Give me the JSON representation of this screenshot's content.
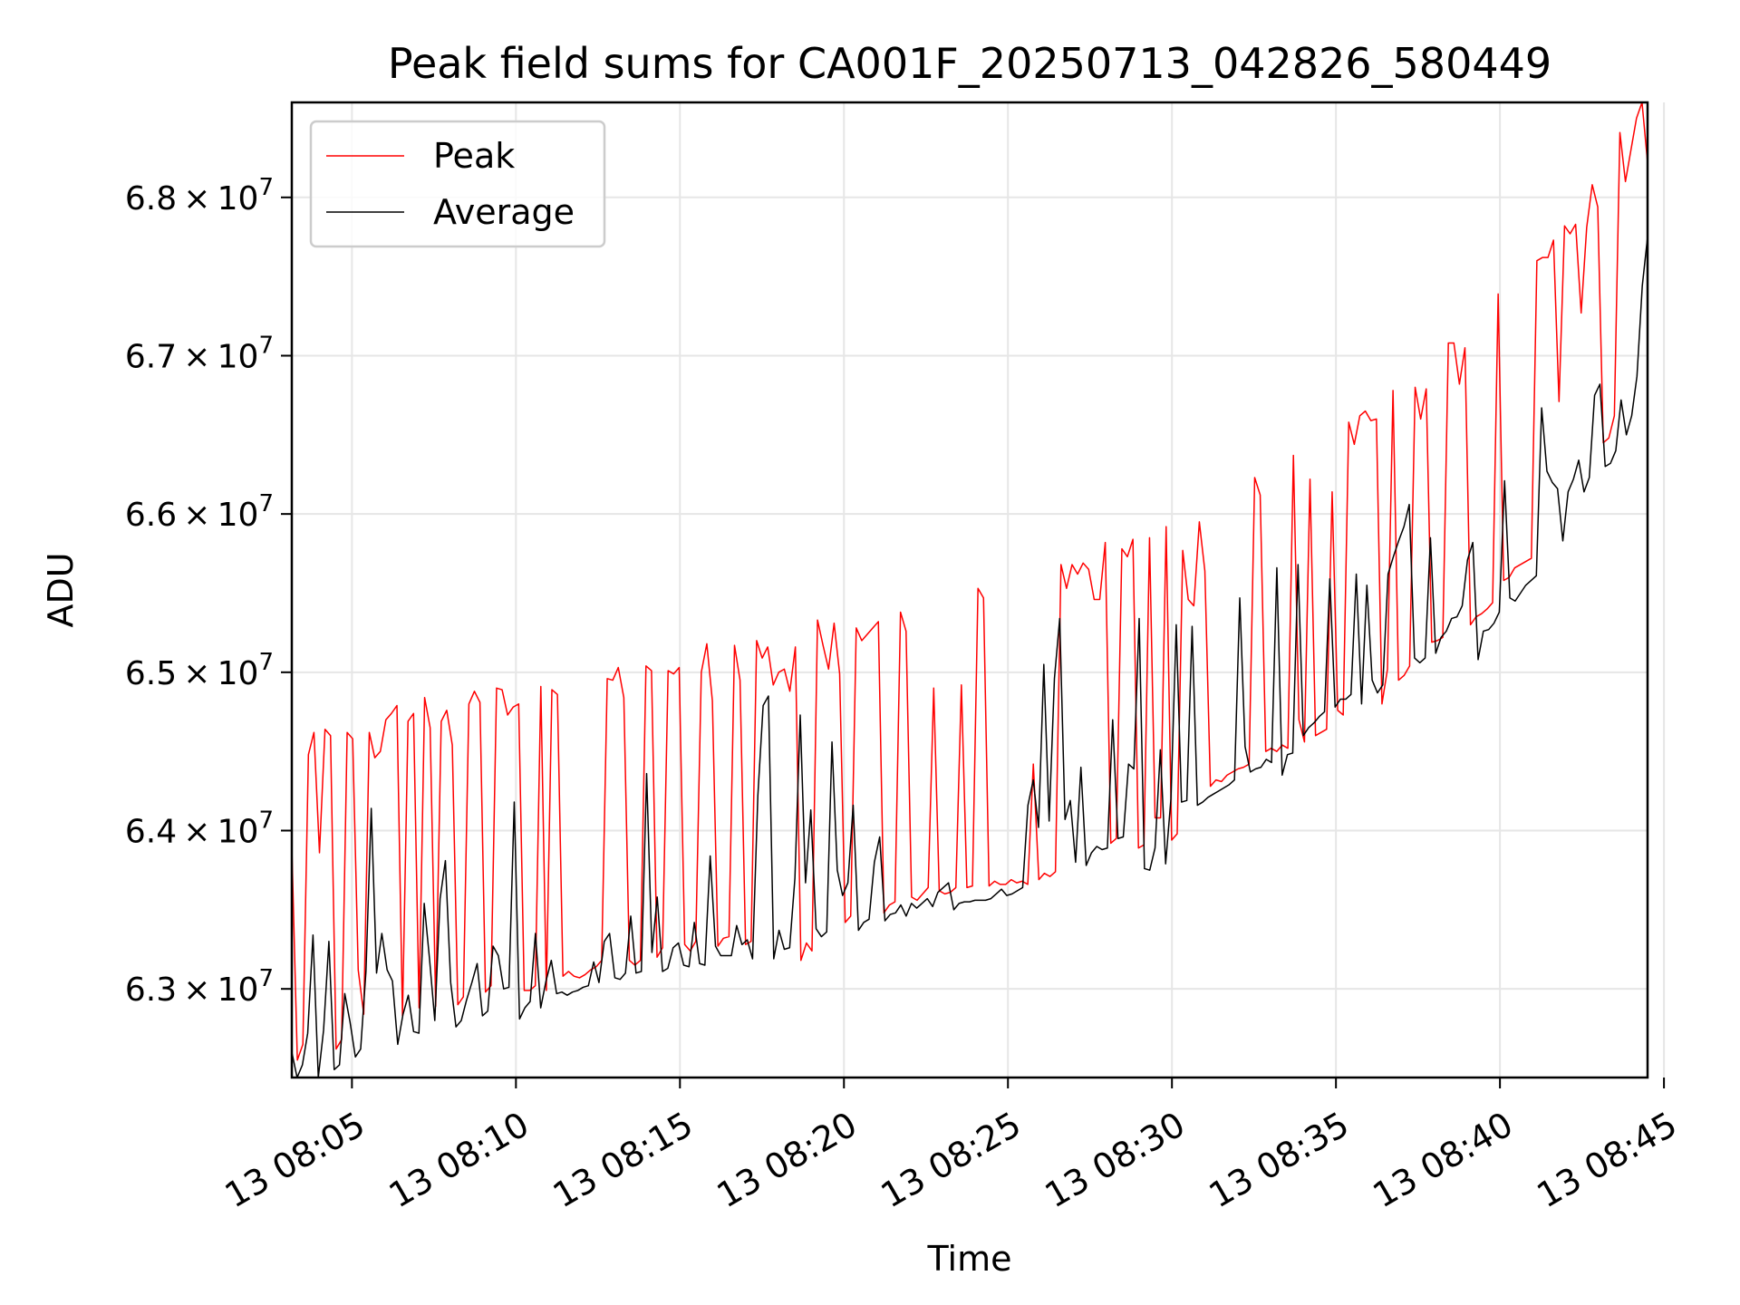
{
  "chart_data": {
    "type": "line",
    "title": "Peak field sums for CA001F_20250713_042826_580449",
    "xlabel": "Time",
    "ylabel": "ADU",
    "x_format": "datetime",
    "x_start": "2025-07-13T08:03:10",
    "x_end": "2025-07-13T08:44:30",
    "x_step_seconds": 6,
    "xlim": [
      "2025-07-13T08:03:10",
      "2025-07-13T08:44:30"
    ],
    "ylim": [
      62440000,
      68600000
    ],
    "x_ticks": [
      "2025-07-13T08:05:00",
      "2025-07-13T08:10:00",
      "2025-07-13T08:15:00",
      "2025-07-13T08:20:00",
      "2025-07-13T08:25:00",
      "2025-07-13T08:30:00",
      "2025-07-13T08:35:00",
      "2025-07-13T08:40:00",
      "2025-07-13T08:45:00"
    ],
    "x_tick_labels": [
      "13 08:05",
      "13 08:10",
      "13 08:15",
      "13 08:20",
      "13 08:25",
      "13 08:30",
      "13 08:35",
      "13 08:40",
      "13 08:45"
    ],
    "y_ticks": [
      63000000,
      64000000,
      65000000,
      66000000,
      67000000,
      68000000
    ],
    "y_tick_labels": [
      {
        "mantissa": "6.3",
        "times": "×",
        "base": "10",
        "exp": "7"
      },
      {
        "mantissa": "6.4",
        "times": "×",
        "base": "10",
        "exp": "7"
      },
      {
        "mantissa": "6.5",
        "times": "×",
        "base": "10",
        "exp": "7"
      },
      {
        "mantissa": "6.6",
        "times": "×",
        "base": "10",
        "exp": "7"
      },
      {
        "mantissa": "6.7",
        "times": "×",
        "base": "10",
        "exp": "7"
      },
      {
        "mantissa": "6.8",
        "times": "×",
        "base": "10",
        "exp": "7"
      }
    ],
    "grid": true,
    "legend_position": "top-left",
    "series": [
      {
        "name": "Peak",
        "color": "#ff0000",
        "values": [
          63900000,
          62550000,
          62650000,
          64480000,
          64620000,
          63860000,
          64640000,
          64600000,
          62620000,
          62680000,
          64620000,
          64580000,
          63120000,
          62840000,
          64620000,
          64460000,
          64500000,
          64700000,
          64740000,
          64790000,
          62830000,
          64690000,
          64740000,
          62880000,
          64840000,
          64650000,
          62890000,
          64690000,
          64760000,
          64540000,
          62900000,
          62950000,
          64800000,
          64880000,
          64810000,
          62980000,
          63020000,
          64900000,
          64890000,
          64730000,
          64780000,
          64800000,
          62990000,
          62990000,
          63020000,
          64910000,
          62990000,
          64890000,
          64860000,
          63080000,
          63110000,
          63080000,
          63070000,
          63090000,
          63120000,
          63140000,
          63180000,
          64960000,
          64950000,
          65030000,
          64840000,
          63180000,
          63150000,
          63180000,
          65040000,
          65010000,
          63200000,
          63260000,
          65010000,
          64990000,
          65030000,
          63280000,
          63240000,
          63300000,
          65000000,
          65180000,
          64820000,
          63270000,
          63320000,
          63330000,
          65170000,
          64950000,
          63280000,
          63300000,
          65200000,
          65090000,
          65160000,
          64920000,
          65000000,
          65020000,
          64880000,
          65160000,
          63180000,
          63290000,
          63240000,
          65330000,
          65170000,
          65020000,
          65310000,
          64990000,
          63420000,
          63460000,
          65280000,
          65200000,
          65240000,
          65280000,
          65320000,
          63480000,
          63530000,
          63550000,
          65380000,
          65260000,
          63580000,
          63560000,
          63600000,
          63640000,
          64900000,
          63620000,
          63600000,
          63610000,
          63640000,
          64920000,
          63640000,
          63650000,
          65530000,
          65470000,
          63650000,
          63680000,
          63660000,
          63660000,
          63690000,
          63670000,
          63680000,
          63660000,
          64420000,
          63690000,
          63730000,
          63710000,
          63740000,
          65680000,
          65530000,
          65680000,
          65620000,
          65690000,
          65650000,
          65460000,
          65460000,
          65820000,
          63920000,
          63950000,
          65780000,
          65730000,
          65840000,
          63890000,
          63910000,
          65850000,
          64080000,
          64080000,
          65920000,
          63940000,
          63980000,
          65770000,
          65460000,
          65420000,
          65950000,
          65640000,
          64280000,
          64320000,
          64310000,
          64350000,
          64370000,
          64390000,
          64400000,
          64420000,
          66230000,
          66120000,
          64500000,
          64520000,
          64500000,
          64540000,
          64520000,
          66370000,
          64700000,
          64560000,
          66220000,
          64600000,
          64620000,
          64640000,
          66140000,
          64760000,
          64730000,
          66580000,
          66440000,
          66620000,
          66650000,
          66590000,
          66600000,
          64800000,
          65020000,
          66780000,
          64950000,
          64980000,
          65040000,
          66800000,
          66600000,
          66790000,
          65190000,
          65200000,
          65220000,
          67080000,
          67080000,
          66820000,
          67050000,
          65300000,
          65350000,
          65370000,
          65400000,
          65440000,
          67390000,
          65580000,
          65600000,
          65660000,
          65680000,
          65700000,
          65720000,
          67600000,
          67620000,
          67620000,
          67730000,
          66710000,
          67820000,
          67770000,
          67830000,
          67270000,
          67810000,
          68080000,
          67940000,
          66450000,
          66480000,
          66620000,
          68410000,
          68100000,
          68300000,
          68500000,
          68600000,
          68220000
        ]
      },
      {
        "name": "Average",
        "color": "#000000",
        "values": [
          62600000,
          62440000,
          62520000,
          62720000,
          63340000,
          62440000,
          62740000,
          63300000,
          62490000,
          62520000,
          62970000,
          62790000,
          62570000,
          62620000,
          63110000,
          64140000,
          63100000,
          63350000,
          63120000,
          63050000,
          62650000,
          62840000,
          62960000,
          62730000,
          62720000,
          63540000,
          63190000,
          62800000,
          63570000,
          63810000,
          63040000,
          62760000,
          62800000,
          62930000,
          63040000,
          63160000,
          62830000,
          62860000,
          63270000,
          63210000,
          63000000,
          63010000,
          64180000,
          62810000,
          62880000,
          62920000,
          63350000,
          62880000,
          63050000,
          63180000,
          62970000,
          62980000,
          62960000,
          62980000,
          62990000,
          63010000,
          63020000,
          63170000,
          63040000,
          63300000,
          63350000,
          63070000,
          63060000,
          63100000,
          63460000,
          63100000,
          63110000,
          64360000,
          63230000,
          63580000,
          63110000,
          63130000,
          63260000,
          63290000,
          63150000,
          63140000,
          63420000,
          63160000,
          63150000,
          63840000,
          63270000,
          63210000,
          63210000,
          63210000,
          63400000,
          63280000,
          63310000,
          63190000,
          64220000,
          64790000,
          64850000,
          63190000,
          63370000,
          63250000,
          63260000,
          63700000,
          64730000,
          63670000,
          64130000,
          63380000,
          63330000,
          63360000,
          64560000,
          63750000,
          63590000,
          63670000,
          64160000,
          63370000,
          63420000,
          63440000,
          63800000,
          63960000,
          63430000,
          63470000,
          63480000,
          63530000,
          63460000,
          63540000,
          63510000,
          63540000,
          63570000,
          63520000,
          63610000,
          63640000,
          63670000,
          63500000,
          63540000,
          63550000,
          63550000,
          63560000,
          63560000,
          63560000,
          63570000,
          63600000,
          63630000,
          63590000,
          63600000,
          63620000,
          63640000,
          64160000,
          64320000,
          64020000,
          65050000,
          64060000,
          64960000,
          65340000,
          64070000,
          64190000,
          63800000,
          64400000,
          63780000,
          63860000,
          63900000,
          63880000,
          63890000,
          64700000,
          63950000,
          63960000,
          64420000,
          64390000,
          65340000,
          63760000,
          63750000,
          63890000,
          64510000,
          63790000,
          64200000,
          65300000,
          64180000,
          64190000,
          65290000,
          64160000,
          64180000,
          64210000,
          64230000,
          64250000,
          64270000,
          64290000,
          64320000,
          65470000,
          64530000,
          64370000,
          64390000,
          64400000,
          64450000,
          64430000,
          65660000,
          64350000,
          64480000,
          64490000,
          65680000,
          64600000,
          64650000,
          64680000,
          64720000,
          64750000,
          65590000,
          64780000,
          64830000,
          64830000,
          64860000,
          65620000,
          64800000,
          65550000,
          64950000,
          64870000,
          64920000,
          65620000,
          65730000,
          65830000,
          65920000,
          66060000,
          65090000,
          65060000,
          65090000,
          65850000,
          65120000,
          65220000,
          65260000,
          65340000,
          65350000,
          65420000,
          65710000,
          65820000,
          65080000,
          65260000,
          65270000,
          65310000,
          65380000,
          66210000,
          65470000,
          65450000,
          65500000,
          65550000,
          65580000,
          65610000,
          66670000,
          66270000,
          66200000,
          66160000,
          65830000,
          66140000,
          66220000,
          66340000,
          66140000,
          66230000,
          66750000,
          66820000,
          66300000,
          66320000,
          66400000,
          66720000,
          66500000,
          66620000,
          66870000,
          67440000,
          67750000
        ]
      }
    ]
  }
}
